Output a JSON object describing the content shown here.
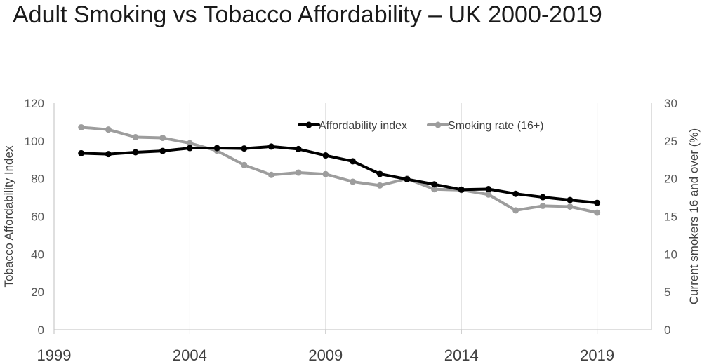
{
  "chart_data": {
    "type": "line",
    "title": "Adult Smoking vs Tobacco Affordability – UK 2000-2019",
    "xlabel": "",
    "x": [
      2000,
      2001,
      2002,
      2003,
      2004,
      2005,
      2006,
      2007,
      2008,
      2009,
      2010,
      2011,
      2012,
      2013,
      2014,
      2015,
      2016,
      2017,
      2018,
      2019
    ],
    "xlim": [
      1999,
      2021
    ],
    "x_ticks": [
      "1999",
      "2004",
      "2009",
      "2014",
      "2019"
    ],
    "x_tick_values": [
      1999,
      2004,
      2009,
      2014,
      2019
    ],
    "ylabel_left": "Tobacco Affordability Index",
    "ylim_left": [
      0,
      120
    ],
    "y_ticks_left": [
      "0",
      "20",
      "40",
      "60",
      "80",
      "100",
      "120"
    ],
    "ylabel_right": "Current smokers 16 and over (%)",
    "ylim_right": [
      0,
      30
    ],
    "y_ticks_right": [
      "0",
      "5",
      "10",
      "15",
      "20",
      "25",
      "30"
    ],
    "grid": "vertical",
    "legend_position": "top-center",
    "series": [
      {
        "name": "Affordability index",
        "axis": "left",
        "color": "#000000",
        "values": [
          93.5,
          93.0,
          94.0,
          94.7,
          96.2,
          96.2,
          96.0,
          97.0,
          95.7,
          92.3,
          89.2,
          82.5,
          79.7,
          77.0,
          74.2,
          74.5,
          72.0,
          70.2,
          68.7,
          67.2
        ]
      },
      {
        "name": "Smoking rate (16+)",
        "axis": "right",
        "color": "#9d9d9d",
        "values": [
          26.8,
          26.5,
          25.5,
          25.4,
          24.7,
          23.7,
          21.8,
          20.5,
          20.8,
          20.6,
          19.6,
          19.1,
          20.0,
          18.6,
          18.5,
          17.9,
          15.8,
          16.4,
          16.3,
          15.5
        ]
      }
    ]
  }
}
